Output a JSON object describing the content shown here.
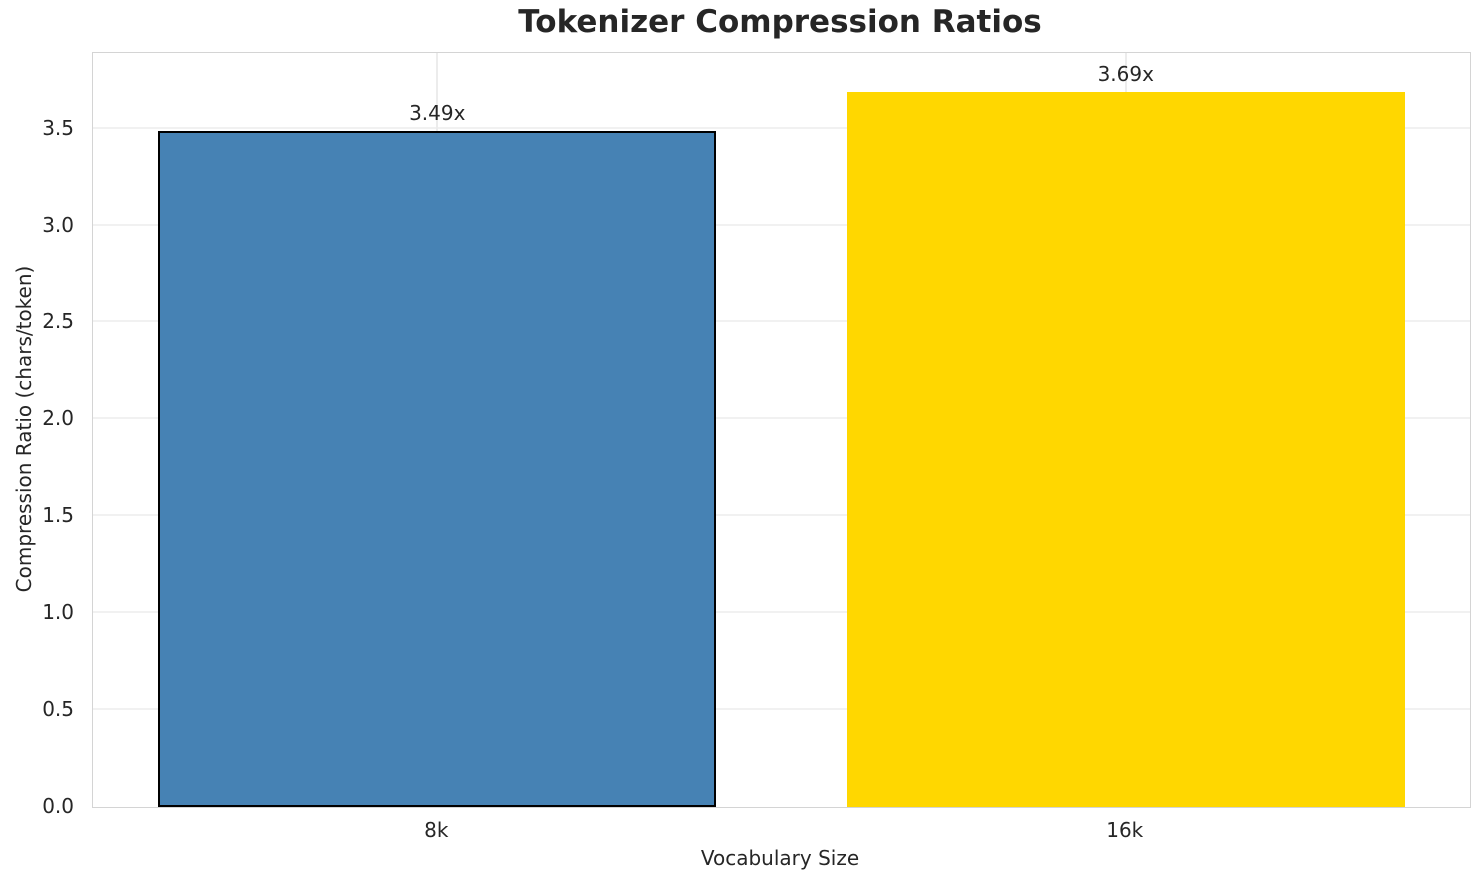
{
  "chart_data": {
    "type": "bar",
    "title": "Tokenizer Compression Ratios",
    "xlabel": "Vocabulary Size",
    "ylabel": "Compression Ratio (chars/token)",
    "categories": [
      "8k",
      "16k"
    ],
    "values": [
      3.49,
      3.69
    ],
    "value_labels": [
      "3.49x",
      "3.69x"
    ],
    "bar_colors": [
      "#4682B4",
      "#FFD700"
    ],
    "bar_edge_colors": [
      "#000000",
      "none"
    ],
    "ylim": [
      0,
      3.89
    ],
    "yticks": [
      0.0,
      0.5,
      1.0,
      1.5,
      2.0,
      2.5,
      3.0,
      3.5
    ],
    "ytick_labels": [
      "0.0",
      "0.5",
      "1.0",
      "1.5",
      "2.0",
      "2.5",
      "3.0",
      "3.5"
    ],
    "grid": true,
    "legend": "none",
    "colors": {
      "text": "#262626",
      "spine": "#d4d4d4",
      "grid": "#f1f1f1",
      "background": "#ffffff"
    }
  }
}
